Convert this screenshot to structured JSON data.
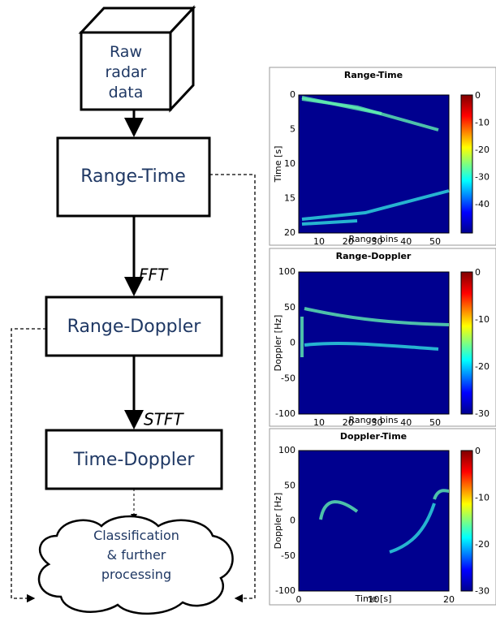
{
  "nodes": [
    {
      "id": "raw",
      "lines": [
        "Raw",
        "radar",
        "data"
      ]
    },
    {
      "id": "rt",
      "label": "Range-Time"
    },
    {
      "id": "rd",
      "label": "Range-Doppler"
    },
    {
      "id": "td",
      "label": "Time-Doppler"
    },
    {
      "id": "cls",
      "lines": [
        "Classification",
        "& further",
        "processing"
      ]
    }
  ],
  "edges": [
    {
      "label": "FFT"
    },
    {
      "label": "STFT"
    }
  ],
  "panels": [
    {
      "title": "Range-Time",
      "xlabel": "Range bins",
      "ylabel": "Time [s]",
      "xticks": [
        "10",
        "20",
        "30",
        "40",
        "50"
      ],
      "yticks": [
        "0",
        "5",
        "10",
        "15",
        "20"
      ],
      "colorbar_ticks": [
        "0",
        "-10",
        "-20",
        "-30",
        "-40"
      ]
    },
    {
      "title": "Range-Doppler",
      "xlabel": "Range bins",
      "ylabel": "Doppler [Hz]",
      "xticks": [
        "10",
        "20",
        "30",
        "40",
        "50"
      ],
      "yticks": [
        "100",
        "50",
        "0",
        "-50",
        "-100"
      ],
      "colorbar_ticks": [
        "0",
        "-10",
        "-20",
        "-30"
      ]
    },
    {
      "title": "Doppler-Time",
      "xlabel": "Time [s]",
      "ylabel": "Doppler [Hz]",
      "xticks": [
        "0",
        "10",
        "20"
      ],
      "yticks": [
        "100",
        "50",
        "0",
        "-50",
        "-100"
      ],
      "colorbar_ticks": [
        "0",
        "-10",
        "-20",
        "-30"
      ]
    }
  ]
}
